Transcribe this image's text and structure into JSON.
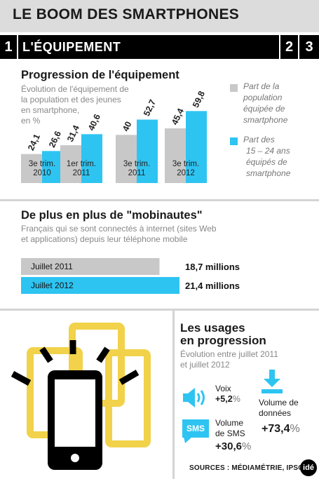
{
  "header": {
    "title": "LE BOOM DES SMARTPHONES",
    "tabs": [
      "1",
      "L'ÉQUIPEMENT",
      "2",
      "3"
    ]
  },
  "section1": {
    "title": "Progression de l'équipement",
    "subtitle": [
      "Évolution de l'équipement de",
      "la population et des jeunes",
      "en smartphone,",
      "en %"
    ],
    "legend": [
      {
        "lines": [
          "Part de la",
          "population",
          "équipée de",
          "smartphone"
        ],
        "color": "#c8c8c8"
      },
      {
        "lines": [
          "Part des",
          "15 – 24 ans",
          "équipés de",
          "smartphone"
        ],
        "color": "#2ec4f2"
      }
    ]
  },
  "chart_data": [
    {
      "type": "bar",
      "categories": [
        [
          "3e trim.",
          "2010"
        ],
        [
          "1er trim.",
          "2011"
        ],
        [
          "3e trim.",
          "2011"
        ],
        [
          "3e trim.",
          "2012"
        ]
      ],
      "series": [
        {
          "name": "Part de la population équipée de smartphone",
          "values": [
            24.1,
            31.4,
            40,
            45.4
          ],
          "labels": [
            "24,1",
            "31,4",
            "40",
            "45,4"
          ],
          "color": "#c8c8c8"
        },
        {
          "name": "Part des 15 – 24 ans équipés de smartphone",
          "values": [
            26.6,
            40.6,
            52.7,
            59.8
          ],
          "labels": [
            "26,6",
            "40,6",
            "52,7",
            "59,8"
          ],
          "color": "#2ec4f2"
        }
      ],
      "title": "Progression de l'équipement",
      "ylim": [
        0,
        60
      ]
    },
    {
      "type": "bar",
      "orientation": "horizontal",
      "categories": [
        "Juillet 2011",
        "Juillet 2012"
      ],
      "values": [
        18.7,
        21.4
      ],
      "labels": [
        "18,7 millions",
        "21,4 millions"
      ],
      "colors": [
        "#c8c8c8",
        "#2ec4f2"
      ],
      "title": "De plus en plus de \"mobinautes\"",
      "xlim": [
        0,
        21.4
      ]
    }
  ],
  "section2": {
    "title": "De plus en plus de \"mobinautes\"",
    "subtitle": [
      "Français qui se sont connectés à internet (sites Web",
      "et applications) depuis leur téléphone mobile"
    ]
  },
  "section3": {
    "title": [
      "Les usages",
      "en progression"
    ],
    "subtitle": [
      "Évolution entre juillet 2011",
      "et juillet 2012"
    ],
    "voix": {
      "label": "Voix",
      "value": "+5,2",
      "unit": "%"
    },
    "sms": {
      "icon_text": "SMS",
      "label": [
        "Volume",
        "de SMS"
      ],
      "value": "+30,6",
      "unit": "%"
    },
    "data": {
      "label": [
        "Volume de",
        "données"
      ],
      "value": "+73,4",
      "unit": "%"
    }
  },
  "footer": {
    "sources": "SOURCES : MÉDIAMÉTRIE, IPSOS",
    "logo": "idé"
  },
  "colors": {
    "blue": "#2ec4f2",
    "gray": "#c8c8c8",
    "yellow": "#f1d24a",
    "black": "#000000"
  }
}
